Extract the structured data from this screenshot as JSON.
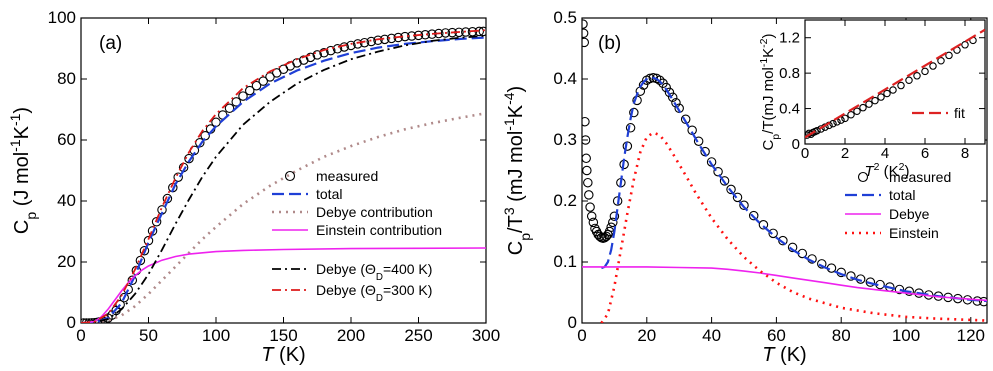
{
  "chart_data": [
    {
      "type": "line",
      "panel_label": "(a)",
      "xlabel": "T (K)",
      "ylabel": "Cp (J mol-1K-1)",
      "xlim": [
        0,
        300
      ],
      "ylim": [
        0,
        100
      ],
      "xticks": [
        "0",
        "50",
        "100",
        "150",
        "200",
        "250",
        "300"
      ],
      "yticks": [
        "0",
        "20",
        "40",
        "60",
        "80",
        "100"
      ],
      "legend_position": "lower-right",
      "series": [
        {
          "name": "measured",
          "style": "circles",
          "color": "#000000",
          "x": [
            2,
            4,
            6,
            8,
            10,
            12,
            14,
            16,
            18,
            20,
            23,
            26,
            29,
            32,
            35,
            38,
            41,
            44,
            47,
            50,
            53,
            56,
            60,
            64,
            68,
            72,
            76,
            80,
            84,
            88,
            92,
            96,
            100,
            105,
            110,
            115,
            120,
            125,
            130,
            135,
            140,
            145,
            150,
            155,
            160,
            165,
            170,
            175,
            180,
            185,
            190,
            195,
            200,
            205,
            210,
            215,
            220,
            225,
            230,
            235,
            240,
            245,
            250,
            255,
            260,
            265,
            270,
            275,
            280,
            285,
            290,
            295,
            298
          ],
          "y": [
            0.0,
            0.01,
            0.02,
            0.05,
            0.1,
            0.2,
            0.4,
            0.7,
            1.1,
            1.6,
            2.6,
            4.1,
            6.0,
            8.3,
            11.0,
            14.0,
            17.2,
            20.5,
            23.7,
            27.0,
            30.2,
            33.2,
            37.1,
            40.8,
            44.4,
            47.8,
            51.0,
            53.9,
            56.6,
            59.1,
            61.4,
            63.6,
            65.8,
            68.2,
            70.4,
            72.5,
            74.4,
            76.2,
            77.8,
            79.3,
            80.7,
            82.0,
            83.2,
            84.3,
            85.3,
            86.2,
            87.1,
            87.9,
            88.6,
            89.3,
            89.9,
            90.5,
            91.0,
            91.5,
            91.9,
            92.3,
            92.7,
            93.0,
            93.3,
            93.6,
            93.9,
            94.1,
            94.3,
            94.5,
            94.7,
            94.9,
            95.1,
            95.2,
            95.3,
            95.4,
            95.5,
            95.6,
            95.6
          ]
        },
        {
          "name": "total",
          "style": "dashed",
          "color": "#1f3fd6",
          "x": [
            0,
            10,
            20,
            30,
            40,
            50,
            60,
            70,
            80,
            90,
            100,
            120,
            140,
            160,
            180,
            200,
            220,
            240,
            260,
            280,
            300
          ],
          "y": [
            0,
            0.1,
            1.6,
            6.5,
            15.5,
            26.5,
            36.0,
            45.5,
            53.0,
            59.5,
            64.5,
            72.5,
            78.5,
            82.8,
            86.0,
            88.5,
            90.3,
            91.5,
            92.4,
            93.1,
            93.6
          ]
        },
        {
          "name": "Debye contribution",
          "style": "dotted",
          "color": "#b08a8a",
          "x": [
            0,
            20,
            30,
            40,
            50,
            60,
            70,
            80,
            90,
            100,
            120,
            140,
            160,
            180,
            200,
            220,
            240,
            260,
            280,
            300
          ],
          "y": [
            0,
            0.8,
            2.5,
            5.5,
            9.5,
            14.0,
            18.5,
            23.0,
            27.5,
            31.5,
            39.0,
            45.0,
            50.0,
            54.5,
            58.0,
            61.0,
            63.5,
            65.5,
            67.2,
            68.8
          ]
        },
        {
          "name": "Einstein contribution",
          "style": "solid",
          "color": "#ee22ee",
          "x": [
            0,
            10,
            15,
            20,
            25,
            30,
            35,
            40,
            45,
            50,
            60,
            70,
            80,
            100,
            120,
            150,
            200,
            250,
            300
          ],
          "y": [
            0,
            0.5,
            2.0,
            4.5,
            7.5,
            10.5,
            13.2,
            15.5,
            17.3,
            18.7,
            20.6,
            21.8,
            22.6,
            23.4,
            23.8,
            24.1,
            24.4,
            24.5,
            24.6
          ]
        },
        {
          "name": "Debye (ΘD=400 K)",
          "style": "dashdot",
          "color": "#000000",
          "x": [
            0,
            10,
            20,
            30,
            40,
            50,
            60,
            70,
            80,
            90,
            100,
            120,
            140,
            160,
            180,
            200,
            220,
            240,
            260,
            280,
            300
          ],
          "y": [
            0,
            0.2,
            1.3,
            4.5,
            9.5,
            16.0,
            24.0,
            32.5,
            40.5,
            48.0,
            54.5,
            65.0,
            72.5,
            78.5,
            83.0,
            86.5,
            89.0,
            91.0,
            92.5,
            93.5,
            94.2
          ]
        },
        {
          "name": "Debye (ΘD=300 K)",
          "style": "dashdot",
          "color": "#dd1a1a",
          "x": [
            0,
            10,
            20,
            30,
            40,
            50,
            60,
            70,
            80,
            90,
            100,
            120,
            140,
            160,
            180,
            200,
            220,
            240,
            260,
            280,
            300
          ],
          "y": [
            0,
            0.4,
            3.0,
            9.0,
            17.5,
            27.5,
            38.0,
            47.5,
            56.0,
            63.0,
            68.5,
            77.0,
            82.5,
            86.5,
            89.5,
            91.5,
            93.0,
            94.0,
            94.8,
            95.4,
            96.0
          ]
        }
      ]
    },
    {
      "type": "line",
      "panel_label": "(b)",
      "xlabel": "T (K)",
      "ylabel": "Cp/T3 (mJ mol-1K-4)",
      "xlim": [
        0,
        125
      ],
      "ylim": [
        0,
        0.5
      ],
      "xticks": [
        "0",
        "20",
        "40",
        "60",
        "80",
        "100",
        "120"
      ],
      "yticks": [
        "0",
        "0.1",
        "0.2",
        "0.3",
        "0.4",
        "0.5"
      ],
      "legend_position": "lower-right",
      "series": [
        {
          "name": "measured",
          "style": "circles",
          "color": "#000000",
          "x": [
            0.3,
            0.5,
            0.7,
            0.9,
            1.1,
            1.3,
            1.5,
            1.8,
            2.1,
            2.5,
            3.0,
            3.5,
            4.0,
            4.5,
            5.0,
            5.5,
            6.0,
            6.5,
            7.0,
            7.5,
            8.0,
            8.5,
            9.0,
            9.5,
            10.0,
            11,
            12,
            13,
            14,
            15,
            16,
            17,
            18,
            19,
            20,
            21,
            22,
            23,
            24,
            25,
            26,
            27,
            28,
            29,
            30,
            32,
            34,
            36,
            38,
            40,
            42,
            44,
            46,
            48,
            50,
            53,
            56,
            59,
            62,
            65,
            68,
            71,
            74,
            77,
            80,
            83,
            86,
            89,
            92,
            95,
            98,
            101,
            104,
            107,
            110,
            113,
            116,
            119,
            122,
            124
          ],
          "y": [
            0.49,
            0.475,
            0.46,
            0.33,
            0.3,
            0.27,
            0.25,
            0.23,
            0.21,
            0.19,
            0.175,
            0.165,
            0.155,
            0.15,
            0.145,
            0.142,
            0.14,
            0.139,
            0.14,
            0.142,
            0.145,
            0.15,
            0.157,
            0.165,
            0.175,
            0.2,
            0.23,
            0.26,
            0.29,
            0.32,
            0.345,
            0.365,
            0.38,
            0.39,
            0.398,
            0.401,
            0.402,
            0.401,
            0.398,
            0.393,
            0.386,
            0.378,
            0.37,
            0.361,
            0.352,
            0.334,
            0.316,
            0.298,
            0.281,
            0.264,
            0.248,
            0.233,
            0.219,
            0.206,
            0.193,
            0.176,
            0.161,
            0.147,
            0.135,
            0.124,
            0.114,
            0.105,
            0.097,
            0.09,
            0.083,
            0.077,
            0.072,
            0.067,
            0.063,
            0.059,
            0.055,
            0.052,
            0.049,
            0.046,
            0.044,
            0.042,
            0.04,
            0.038,
            0.036,
            0.035
          ]
        },
        {
          "name": "total",
          "style": "dashed",
          "color": "#1f3fd6",
          "x": [
            6,
            7,
            8,
            9,
            10,
            11,
            12,
            13,
            14,
            15,
            16,
            17,
            18,
            19,
            20,
            21,
            22,
            23,
            24,
            25,
            26,
            28,
            30,
            32,
            34,
            36,
            38,
            40,
            45,
            50,
            55,
            60,
            65,
            70,
            75,
            80,
            85,
            90,
            95,
            100,
            105,
            110,
            115,
            120,
            125
          ],
          "y": [
            0.09,
            0.092,
            0.1,
            0.12,
            0.15,
            0.19,
            0.23,
            0.27,
            0.305,
            0.335,
            0.36,
            0.375,
            0.387,
            0.395,
            0.4,
            0.402,
            0.402,
            0.4,
            0.396,
            0.39,
            0.383,
            0.366,
            0.348,
            0.33,
            0.312,
            0.294,
            0.277,
            0.26,
            0.223,
            0.19,
            0.163,
            0.14,
            0.12,
            0.104,
            0.091,
            0.08,
            0.071,
            0.064,
            0.058,
            0.052,
            0.048,
            0.044,
            0.041,
            0.038,
            0.036
          ]
        },
        {
          "name": "Debye",
          "style": "solid",
          "color": "#ee22ee",
          "x": [
            0,
            10,
            20,
            30,
            40,
            45,
            50,
            55,
            60,
            65,
            70,
            75,
            80,
            85,
            90,
            95,
            100,
            105,
            110,
            115,
            120,
            125
          ],
          "y": [
            0.092,
            0.092,
            0.092,
            0.091,
            0.09,
            0.088,
            0.085,
            0.082,
            0.078,
            0.074,
            0.07,
            0.066,
            0.062,
            0.058,
            0.055,
            0.052,
            0.049,
            0.046,
            0.043,
            0.041,
            0.039,
            0.037
          ]
        },
        {
          "name": "Einstein",
          "style": "dotted",
          "color": "#ff1111",
          "x": [
            6,
            8,
            10,
            12,
            14,
            16,
            18,
            20,
            22,
            24,
            26,
            28,
            30,
            32,
            35,
            40,
            45,
            50,
            55,
            60,
            65,
            70,
            80,
            90,
            100,
            110,
            120,
            125
          ],
          "y": [
            0.0,
            0.015,
            0.06,
            0.12,
            0.18,
            0.235,
            0.28,
            0.305,
            0.312,
            0.308,
            0.295,
            0.278,
            0.26,
            0.242,
            0.214,
            0.172,
            0.137,
            0.108,
            0.085,
            0.066,
            0.051,
            0.04,
            0.025,
            0.016,
            0.01,
            0.007,
            0.005,
            0.004
          ]
        }
      ]
    },
    {
      "type": "scatter",
      "inset_of": "(b)",
      "xlabel": "T2 (K2)",
      "ylabel": "Cp/T(mJ mol-1K-2)",
      "xlim": [
        0,
        9
      ],
      "ylim": [
        0,
        1.4
      ],
      "xticks": [
        "0",
        "2",
        "4",
        "6",
        "8"
      ],
      "yticks": [
        "0",
        "0.4",
        "0.8",
        "1.2"
      ],
      "series": [
        {
          "name": "",
          "style": "circles",
          "color": "#000000",
          "x": [
            0.1,
            0.2,
            0.3,
            0.4,
            0.5,
            0.6,
            0.8,
            1.0,
            1.2,
            1.4,
            1.6,
            1.8,
            2.0,
            2.3,
            2.6,
            2.9,
            3.2,
            3.5,
            3.8,
            4.1,
            4.4,
            4.8,
            5.2,
            5.6,
            6.0,
            6.4,
            6.8,
            7.2,
            7.6,
            8.0,
            8.4
          ],
          "y": [
            0.1,
            0.12,
            0.11,
            0.13,
            0.14,
            0.15,
            0.17,
            0.19,
            0.21,
            0.23,
            0.25,
            0.27,
            0.29,
            0.33,
            0.37,
            0.41,
            0.45,
            0.49,
            0.53,
            0.57,
            0.61,
            0.66,
            0.72,
            0.77,
            0.82,
            0.88,
            0.94,
            1.0,
            1.06,
            1.12,
            1.17
          ]
        },
        {
          "name": "fit",
          "style": "dashed",
          "color": "#dd2222",
          "x": [
            0,
            9
          ],
          "y": [
            0.075,
            1.29
          ]
        }
      ]
    }
  ]
}
